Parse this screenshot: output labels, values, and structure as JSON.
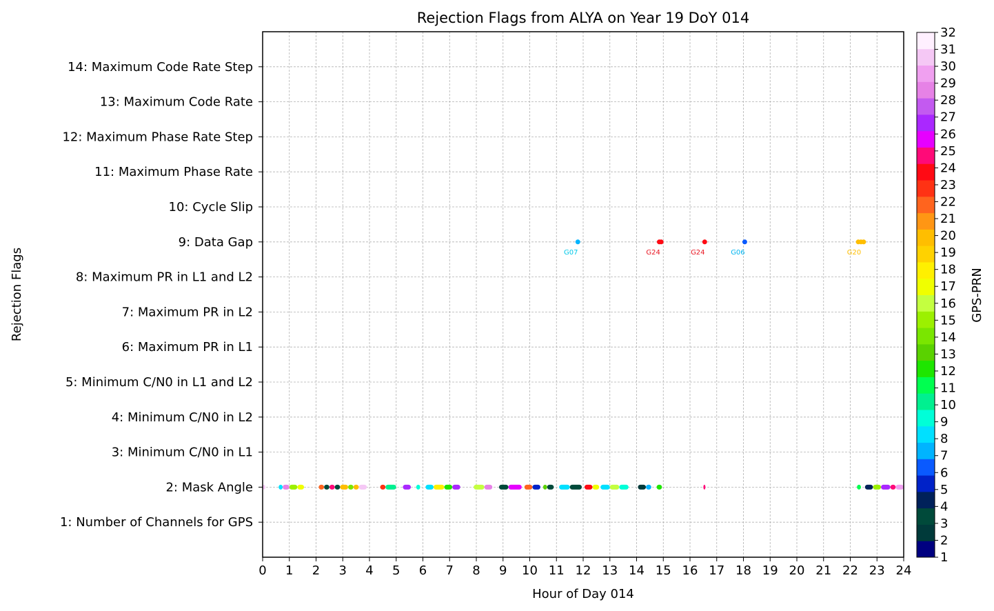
{
  "chart_data": {
    "type": "scatter",
    "title": "Rejection Flags from ALYA on Year 19 DoY 014",
    "xlabel": "Hour of Day 014",
    "ylabel": "Rejection Flags",
    "xlim": [
      0,
      24
    ],
    "xticks": [
      "0",
      "1",
      "2",
      "3",
      "4",
      "5",
      "6",
      "7",
      "8",
      "9",
      "10",
      "11",
      "12",
      "13",
      "14",
      "15",
      "16",
      "17",
      "18",
      "19",
      "20",
      "21",
      "22",
      "23",
      "24"
    ],
    "ylim": [
      0,
      15
    ],
    "yticks": [
      {
        "value": 1,
        "label": "1: Number of Channels for GPS"
      },
      {
        "value": 2,
        "label": "2: Mask Angle"
      },
      {
        "value": 3,
        "label": "3: Minimum C/N0 in L1"
      },
      {
        "value": 4,
        "label": "4: Minimum C/N0 in L2"
      },
      {
        "value": 5,
        "label": "5: Minimum C/N0 in L1 and L2"
      },
      {
        "value": 6,
        "label": "6: Maximum PR in L1"
      },
      {
        "value": 7,
        "label": "7: Maximum PR in L2"
      },
      {
        "value": 8,
        "label": "8: Maximum PR in L1 and L2"
      },
      {
        "value": 9,
        "label": "9: Data Gap"
      },
      {
        "value": 10,
        "label": "10: Cycle Slip"
      },
      {
        "value": 11,
        "label": "11: Maximum Phase Rate"
      },
      {
        "value": 12,
        "label": "12: Maximum Phase Rate Step"
      },
      {
        "value": 13,
        "label": "13: Maximum Code Rate"
      },
      {
        "value": 14,
        "label": "14: Maximum Code Rate Step"
      }
    ],
    "grid": true,
    "colorbar": {
      "label": "GPS-PRN",
      "min": 1,
      "max": 32,
      "ticks": [
        "1",
        "2",
        "3",
        "4",
        "5",
        "6",
        "7",
        "8",
        "9",
        "10",
        "11",
        "12",
        "13",
        "14",
        "15",
        "16",
        "17",
        "18",
        "19",
        "20",
        "21",
        "22",
        "23",
        "24",
        "25",
        "26",
        "27",
        "28",
        "29",
        "30",
        "31",
        "32"
      ],
      "colors": [
        "#000080",
        "#003a3a",
        "#004a3a",
        "#00215a",
        "#0022c8",
        "#0a5aff",
        "#00b4ff",
        "#00e0ff",
        "#00ffd8",
        "#00f090",
        "#00ff50",
        "#1ee600",
        "#5ad200",
        "#7ae600",
        "#9cf000",
        "#c4ff40",
        "#f0ff00",
        "#fff000",
        "#ffd200",
        "#ffbe00",
        "#ff9614",
        "#ff641e",
        "#ff3214",
        "#ff0a14",
        "#ff0a78",
        "#e600ff",
        "#aa28ff",
        "#c35af0",
        "#e682e6",
        "#f0a0f0",
        "#f5c8f5",
        "#fff0ff"
      ]
    },
    "series": [
      {
        "flag": 9,
        "points": [
          {
            "x": 11.8,
            "prn": 7
          },
          {
            "x": 14.85,
            "prn": 24
          },
          {
            "x": 14.92,
            "prn": 24
          },
          {
            "x": 16.55,
            "prn": 24
          },
          {
            "x": 18.05,
            "prn": 6
          },
          {
            "x": 22.3,
            "prn": 20
          },
          {
            "x": 22.4,
            "prn": 20
          },
          {
            "x": 22.5,
            "prn": 20
          }
        ]
      },
      {
        "flag": 2,
        "segments": [
          {
            "x0": 0.0,
            "x1": 0.1,
            "prn": 31
          },
          {
            "x0": 0.6,
            "x1": 0.75,
            "prn": 8
          },
          {
            "x0": 0.75,
            "x1": 1.0,
            "prn": 29
          },
          {
            "x0": 1.0,
            "x1": 1.3,
            "prn": 15
          },
          {
            "x0": 1.3,
            "x1": 1.55,
            "prn": 17
          },
          {
            "x0": 2.1,
            "x1": 2.3,
            "prn": 22
          },
          {
            "x0": 2.3,
            "x1": 2.5,
            "prn": 3
          },
          {
            "x0": 2.5,
            "x1": 2.7,
            "prn": 25
          },
          {
            "x0": 2.7,
            "x1": 2.9,
            "prn": 3
          },
          {
            "x0": 2.9,
            "x1": 3.2,
            "prn": 20
          },
          {
            "x0": 3.2,
            "x1": 3.4,
            "prn": 14
          },
          {
            "x0": 3.4,
            "x1": 3.6,
            "prn": 20
          },
          {
            "x0": 3.6,
            "x1": 3.9,
            "prn": 31
          },
          {
            "x0": 4.4,
            "x1": 4.6,
            "prn": 23
          },
          {
            "x0": 4.6,
            "x1": 5.0,
            "prn": 10
          },
          {
            "x0": 5.25,
            "x1": 5.55,
            "prn": 27
          },
          {
            "x0": 5.75,
            "x1": 5.9,
            "prn": 9
          },
          {
            "x0": 6.1,
            "x1": 6.4,
            "prn": 8
          },
          {
            "x0": 6.4,
            "x1": 6.8,
            "prn": 18
          },
          {
            "x0": 6.8,
            "x1": 7.1,
            "prn": 12
          },
          {
            "x0": 7.1,
            "x1": 7.4,
            "prn": 27
          },
          {
            "x0": 7.9,
            "x1": 8.3,
            "prn": 16
          },
          {
            "x0": 8.3,
            "x1": 8.6,
            "prn": 29
          },
          {
            "x0": 8.85,
            "x1": 9.2,
            "prn": 3
          },
          {
            "x0": 9.2,
            "x1": 9.7,
            "prn": 26
          },
          {
            "x0": 9.8,
            "x1": 10.1,
            "prn": 22
          },
          {
            "x0": 10.1,
            "x1": 10.4,
            "prn": 5
          },
          {
            "x0": 10.5,
            "x1": 10.65,
            "prn": 13
          },
          {
            "x0": 10.65,
            "x1": 10.9,
            "prn": 3
          },
          {
            "x0": 11.1,
            "x1": 11.5,
            "prn": 8
          },
          {
            "x0": 11.5,
            "x1": 11.95,
            "prn": 3
          },
          {
            "x0": 12.05,
            "x1": 12.35,
            "prn": 24
          },
          {
            "x0": 12.35,
            "x1": 12.6,
            "prn": 17
          },
          {
            "x0": 12.65,
            "x1": 13.0,
            "prn": 8
          },
          {
            "x0": 13.0,
            "x1": 13.35,
            "prn": 16
          },
          {
            "x0": 13.35,
            "x1": 13.7,
            "prn": 9
          },
          {
            "x0": 14.05,
            "x1": 14.35,
            "prn": 2
          },
          {
            "x0": 14.35,
            "x1": 14.55,
            "prn": 7
          },
          {
            "x0": 14.75,
            "x1": 14.95,
            "prn": 12
          },
          {
            "x0": 16.5,
            "x1": 16.55,
            "prn": 25
          },
          {
            "x0": 22.25,
            "x1": 22.4,
            "prn": 11
          },
          {
            "x0": 22.55,
            "x1": 22.85,
            "prn": 4
          },
          {
            "x0": 22.85,
            "x1": 23.15,
            "prn": 15
          },
          {
            "x0": 23.15,
            "x1": 23.5,
            "prn": 27
          },
          {
            "x0": 23.5,
            "x1": 23.7,
            "prn": 25
          },
          {
            "x0": 23.7,
            "x1": 24.0,
            "prn": 30
          }
        ]
      }
    ],
    "annotations": [
      {
        "x": 11.8,
        "text": "G07",
        "color": "#00c8e8"
      },
      {
        "x": 14.88,
        "text": "G24",
        "color": "#e81420"
      },
      {
        "x": 16.55,
        "text": "G24",
        "color": "#e81420"
      },
      {
        "x": 18.05,
        "text": "G06",
        "color": "#00b4f0"
      },
      {
        "x": 22.4,
        "text": "G20",
        "color": "#ffbe00"
      }
    ]
  }
}
